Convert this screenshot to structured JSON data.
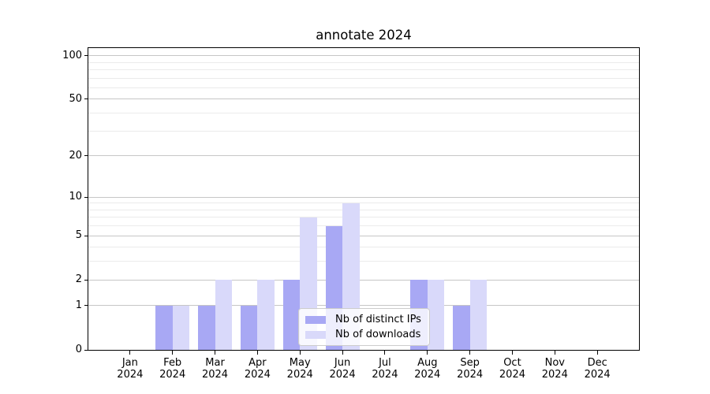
{
  "title": "annotate 2024",
  "chart_data": {
    "type": "bar",
    "title": "annotate 2024",
    "categories": [
      {
        "month": "Jan",
        "year": "2024"
      },
      {
        "month": "Feb",
        "year": "2024"
      },
      {
        "month": "Mar",
        "year": "2024"
      },
      {
        "month": "Apr",
        "year": "2024"
      },
      {
        "month": "May",
        "year": "2024"
      },
      {
        "month": "Jun",
        "year": "2024"
      },
      {
        "month": "Jul",
        "year": "2024"
      },
      {
        "month": "Aug",
        "year": "2024"
      },
      {
        "month": "Sep",
        "year": "2024"
      },
      {
        "month": "Oct",
        "year": "2024"
      },
      {
        "month": "Nov",
        "year": "2024"
      },
      {
        "month": "Dec",
        "year": "2024"
      }
    ],
    "series": [
      {
        "name": "Nb of distinct IPs",
        "color": "#a8a8f4",
        "values": [
          0,
          1,
          1,
          1,
          2,
          6,
          0,
          2,
          1,
          0,
          0,
          0
        ]
      },
      {
        "name": "Nb of downloads",
        "color": "#d9d9fa",
        "values": [
          0,
          1,
          2,
          2,
          7,
          9,
          0,
          2,
          2,
          0,
          0,
          0
        ]
      }
    ],
    "y_axis": {
      "scale": "log1p",
      "tick_values": [
        0,
        1,
        2,
        5,
        10,
        20,
        50,
        100
      ],
      "minor_tick_values": [
        3,
        4,
        6,
        7,
        8,
        9,
        30,
        40,
        60,
        70,
        80,
        90
      ],
      "max": 115
    },
    "legend": {
      "position": "lower center"
    },
    "grid": true,
    "colors": {
      "major_grid": "#c6c6c6",
      "minor_grid": "#ebebeb",
      "axis": "#000000",
      "background": "#ffffff"
    }
  }
}
